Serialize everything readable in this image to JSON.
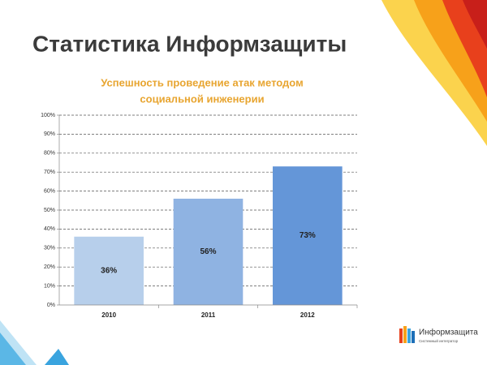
{
  "slide_title": "Статистика Информзащиты",
  "chart_data": {
    "type": "bar",
    "title": [
      "Успешность проведение атак методом",
      "социальной инженерии"
    ],
    "categories": [
      "2010",
      "2011",
      "2012"
    ],
    "values": [
      36,
      56,
      73
    ],
    "value_labels": [
      "36%",
      "56%",
      "73%"
    ],
    "colors": [
      "#b7cfeb",
      "#8fb3e2",
      "#6496d8"
    ],
    "ylim": [
      0,
      100
    ],
    "yticks": [
      {
        "value": 0,
        "label": "0%"
      },
      {
        "value": 10,
        "label": "10%"
      },
      {
        "value": 20,
        "label": "20%"
      },
      {
        "value": 30,
        "label": "30%"
      },
      {
        "value": 40,
        "label": "40%"
      },
      {
        "value": 50,
        "label": "50%"
      },
      {
        "value": 60,
        "label": "60%"
      },
      {
        "value": 70,
        "label": "70%"
      },
      {
        "value": 80,
        "label": "80%"
      },
      {
        "value": 90,
        "label": "90%"
      },
      {
        "value": 100,
        "label": "100%"
      }
    ],
    "grid": true
  },
  "logo": {
    "name": "Информзащита",
    "tagline": "Системный интегратор"
  }
}
